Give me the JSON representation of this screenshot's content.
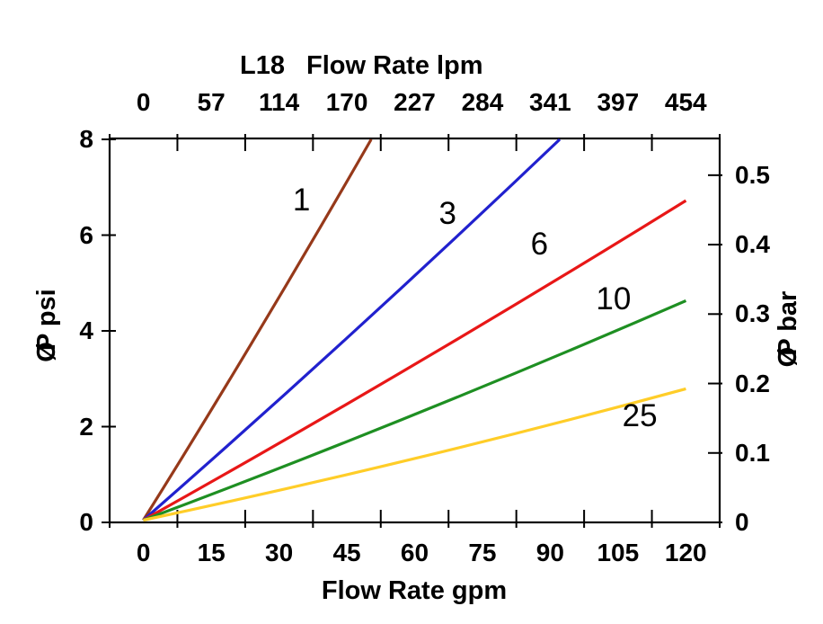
{
  "chart_data": {
    "type": "line",
    "title": "L18",
    "background": "#ffffff",
    "axis_color": "#000000",
    "axes": {
      "top": {
        "title": "Flow Rate lpm",
        "tick_labels": [
          "0",
          "57",
          "114",
          "170",
          "227",
          "284",
          "341",
          "397",
          "454"
        ]
      },
      "bottom": {
        "title": "Flow Rate gpm",
        "tick_labels": [
          "0",
          "15",
          "30",
          "45",
          "60",
          "75",
          "90",
          "105",
          "120"
        ],
        "gpm_values": [
          0,
          15,
          30,
          45,
          60,
          75,
          90,
          105,
          120
        ]
      },
      "left": {
        "title": "ØP psi",
        "title_symbol": "Ø",
        "title_rest": "P psi",
        "tick_labels": [
          "0",
          "2",
          "4",
          "6",
          "8"
        ],
        "psi_values": [
          0,
          2,
          4,
          6,
          8
        ],
        "range_psi": [
          0,
          8
        ]
      },
      "right": {
        "title": "ØP bar",
        "title_symbol": "Ø",
        "title_rest": "P bar",
        "tick_labels": [
          "0",
          "0.1",
          "0.2",
          "0.3",
          "0.4",
          "0.5"
        ],
        "bar_values": [
          0,
          0.1,
          0.2,
          0.3,
          0.4,
          0.5
        ]
      }
    },
    "series": [
      {
        "label": "1",
        "color": "#96391A",
        "start_gpm_psi": [
          0,
          0
        ],
        "end_gpm_psi": [
          50.4,
          8.0
        ],
        "label_anchor_gpm_psi": [
          35.0,
          6.72
        ]
      },
      {
        "label": "3",
        "color": "#2121CE",
        "start_gpm_psi": [
          0,
          0
        ],
        "end_gpm_psi": [
          92.1,
          8.0
        ],
        "label_anchor_gpm_psi": [
          67.3,
          6.44
        ]
      },
      {
        "label": "6",
        "color": "#E81717",
        "start_gpm_psi": [
          0,
          0
        ],
        "end_gpm_psi": [
          120,
          6.72
        ],
        "label_anchor_gpm_psi": [
          87.6,
          5.8
        ]
      },
      {
        "label": "10",
        "color": "#1E8F22",
        "start_gpm_psi": [
          0,
          0
        ],
        "end_gpm_psi": [
          120,
          4.63
        ],
        "label_anchor_gpm_psi": [
          104.0,
          4.66
        ]
      },
      {
        "label": "25",
        "color": "#FFCD28",
        "start_gpm_psi": [
          0,
          0
        ],
        "end_gpm_psi": [
          120,
          2.79
        ],
        "label_anchor_gpm_psi": [
          109.8,
          2.22
        ]
      }
    ]
  }
}
